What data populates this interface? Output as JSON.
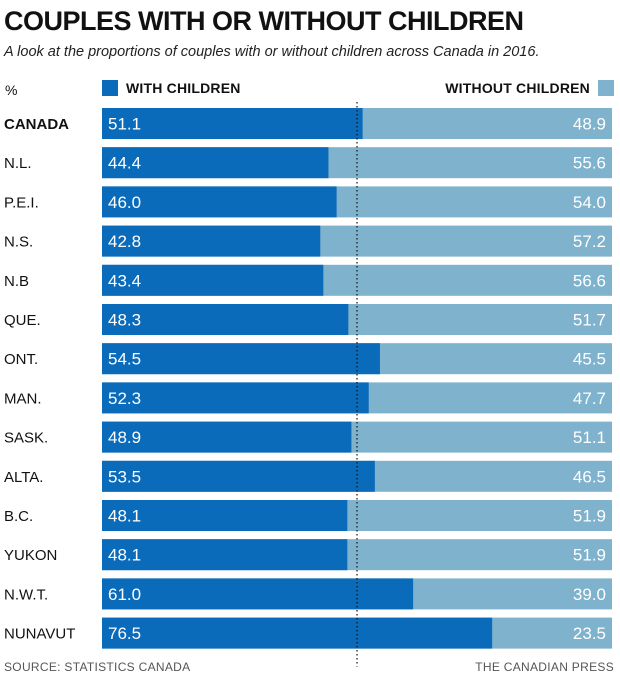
{
  "header": {
    "title": "COUPLES WITH OR WITHOUT CHILDREN",
    "subtitle": "A look at the proportions of couples with or without children across Canada in 2016."
  },
  "legend": {
    "unit": "%",
    "with_label": "WITH CHILDREN",
    "without_label": "WITHOUT CHILDREN"
  },
  "footer": {
    "source": "SOURCE: STATISTICS CANADA",
    "credit": "THE CANADIAN PRESS"
  },
  "colors": {
    "with": "#0a6bbb",
    "without": "#7fb2cc",
    "divider": "#111111"
  },
  "chart_data": {
    "type": "bar",
    "stacked": true,
    "orientation": "horizontal",
    "xlim": [
      0,
      100
    ],
    "reference_line": 50,
    "categories": [
      "CANADA",
      "N.L.",
      "P.E.I.",
      "N.S.",
      "N.B",
      "QUE.",
      "ONT.",
      "MAN.",
      "SASK.",
      "ALTA.",
      "B.C.",
      "YUKON",
      "N.W.T.",
      "NUNAVUT"
    ],
    "series": [
      {
        "name": "WITH CHILDREN",
        "values": [
          51.1,
          44.4,
          46.0,
          42.8,
          43.4,
          48.3,
          54.5,
          52.3,
          48.9,
          53.5,
          48.1,
          48.1,
          61.0,
          76.5
        ]
      },
      {
        "name": "WITHOUT CHILDREN",
        "values": [
          48.9,
          55.6,
          54.0,
          57.2,
          56.6,
          51.7,
          45.5,
          47.7,
          51.1,
          46.5,
          51.9,
          51.9,
          39.0,
          23.5
        ]
      }
    ],
    "value_labels": {
      "with": [
        "51.1",
        "44.4",
        "46.0",
        "42.8",
        "43.4",
        "48.3",
        "54.5",
        "52.3",
        "48.9",
        "53.5",
        "48.1",
        "48.1",
        "61.0",
        "76.5"
      ],
      "without": [
        "48.9",
        "55.6",
        "54.0",
        "57.2",
        "56.6",
        "51.7",
        "45.5",
        "47.7",
        "51.1",
        "46.5",
        "51.9",
        "51.9",
        "39.0",
        "23.5"
      ]
    },
    "bold_category": "CANADA"
  }
}
